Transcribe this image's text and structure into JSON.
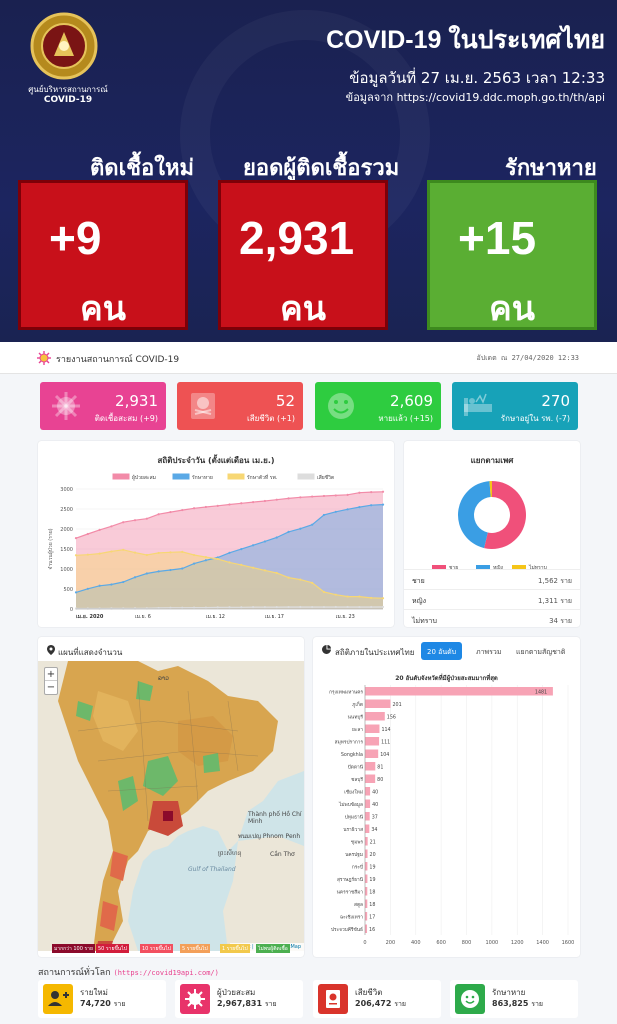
{
  "header": {
    "org_line1": "ศูนย์บริหารสถานการณ์",
    "org_line2": "COVID-19",
    "title": "COVID-19 ในประเทศไทย",
    "date": "ข้อมูลวันที่ 27 เม.ย. 2563 เวลา 12:33",
    "source": "ข้อมูลจาก https://covid19.ddc.moph.go.th/th/api"
  },
  "hero": [
    {
      "label": "ติดเชื้อใหม่",
      "value": "+9",
      "unit": "คน"
    },
    {
      "label": "ยอดผู้ติดเชื้อรวม",
      "value": "2,931",
      "unit": "คน"
    },
    {
      "label": "รักษาหาย",
      "value": "+15",
      "unit": "คน"
    }
  ],
  "report": {
    "title": "รายงานสถานการณ์ COVID-19",
    "updated": "อัปเดต ณ 27/04/2020 12:33"
  },
  "stats": [
    {
      "value": "2,931",
      "sub": "ติดเชื้อสะสม (+9)",
      "color": "#e84393",
      "icon": "virus-icon"
    },
    {
      "value": "52",
      "sub": "เสียชีวิต (+1)",
      "color": "#ee5253",
      "icon": "skull-icon"
    },
    {
      "value": "2,609",
      "sub": "หายแล้ว (+15)",
      "color": "#2ecc40",
      "icon": "smile-icon"
    },
    {
      "value": "270",
      "sub": "รักษาอยู่ใน รพ. (-7)",
      "color": "#17a2b8",
      "icon": "hospital-bed-icon"
    }
  ],
  "daily": {
    "title": "สถิติประจำวัน (ตั้งแต่เดือน เม.ย.)",
    "legend": [
      "ผู้ป่วยสะสม",
      "รักษาหาย",
      "รักษาตัวที่ รพ.",
      "เสียชีวิต"
    ],
    "ylabel": "จำนวนผู้ป่วย (ราย)"
  },
  "chart_data": {
    "type": "area",
    "title": "สถิติประจำวัน (ตั้งแต่เดือน เม.ย.)",
    "ylabel": "จำนวนผู้ป่วย (ราย)",
    "ylim": [
      0,
      3000
    ],
    "yticks": [
      "0",
      "500",
      "1000",
      "1500",
      "2000",
      "2500",
      "3000"
    ],
    "xticks": [
      "เม.ย. 2020",
      "เม.ย. 6",
      "เม.ย. 12",
      "เม.ย. 17",
      "เม.ย. 23"
    ],
    "x": [
      1,
      2,
      3,
      4,
      5,
      6,
      7,
      8,
      9,
      10,
      11,
      12,
      13,
      14,
      15,
      16,
      17,
      18,
      19,
      20,
      21,
      22,
      23,
      24,
      25,
      26,
      27
    ],
    "series": [
      {
        "name": "ผู้ป่วยสะสม",
        "color": "#f28ba8",
        "values": [
          1771,
          1875,
          1978,
          2067,
          2169,
          2220,
          2258,
          2369,
          2423,
          2473,
          2518,
          2551,
          2579,
          2613,
          2643,
          2672,
          2700,
          2733,
          2765,
          2792,
          2811,
          2826,
          2839,
          2854,
          2907,
          2922,
          2931
        ]
      },
      {
        "name": "รักษาหาย",
        "color": "#5aa9e6",
        "values": [
          416,
          505,
          581,
          612,
          674,
          793,
          888,
          940,
          974,
          1013,
          1135,
          1218,
          1288,
          1405,
          1497,
          1593,
          1689,
          1787,
          1928,
          2007,
          2108,
          2352,
          2430,
          2492,
          2547,
          2594,
          2609
        ]
      },
      {
        "name": "รักษาตัวที่ รพ.",
        "color": "#f7d774",
        "values": [
          1343,
          1358,
          1384,
          1439,
          1480,
          1409,
          1350,
          1402,
          1417,
          1428,
          1349,
          1297,
          1251,
          1165,
          1103,
          1032,
          966,
          900,
          784,
          735,
          654,
          425,
          358,
          311,
          311,
          277,
          270
        ]
      },
      {
        "name": "เสียชีวิต",
        "color": "#dddddd",
        "values": [
          12,
          12,
          13,
          16,
          15,
          18,
          20,
          27,
          32,
          32,
          34,
          36,
          40,
          43,
          43,
          47,
          47,
          47,
          49,
          50,
          49,
          49,
          51,
          51,
          49,
          51,
          52
        ]
      }
    ]
  },
  "gender": {
    "title": "แยกตามเพศ",
    "legend": [
      "ชาย",
      "หญิง",
      "ไม่ทราบ"
    ],
    "rows": [
      {
        "k": "ชาย",
        "v": "1,562 ราย"
      },
      {
        "k": "หญิง",
        "v": "1,311 ราย"
      },
      {
        "k": "ไม่ทราบ",
        "v": "34 ราย"
      }
    ]
  },
  "gender_chart": {
    "type": "pie",
    "values": [
      1562,
      1311,
      34
    ],
    "labels": [
      "ชาย",
      "หญิง",
      "ไม่ทราบ"
    ],
    "colors": [
      "#f0507a",
      "#3a9ee4",
      "#f5c518"
    ]
  },
  "map": {
    "title": "แผนที่แสดงจำนวน",
    "zoom_in": "+",
    "zoom_out": "−",
    "labels": [
      "Gulf of Thailand",
      "พนมเปญ Phnom Penh",
      "Thành phố Hồ Chí Minh",
      "ព្រះសីហនុ",
      "Cần Thơ",
      "ລາວ"
    ],
    "attribution": "Leaflet | © OpenStreetMap",
    "legend": [
      {
        "t": "มากกว่า 100 ราย",
        "c": "#8b0a2b"
      },
      {
        "t": "50 รายขึ้นไป",
        "c": "#d21d3c"
      },
      {
        "t": "10 รายขึ้นไป",
        "c": "#f25060"
      },
      {
        "t": "5 รายขึ้นไป",
        "c": "#f3a05a"
      },
      {
        "t": "1 รายขึ้นไป",
        "c": "#f2c94c"
      },
      {
        "t": "ไม่พบผู้ติดเชื้อ",
        "c": "#4caf50"
      }
    ]
  },
  "province": {
    "title": "สถิติภายในประเทศไทย",
    "tabs": [
      "20 อันดับ",
      "ภาพรวม",
      "แยกตามสัญชาติ"
    ],
    "chart_title": "20 อันดับจังหวัดที่มีผู้ป่วยสะสมมากที่สุด"
  },
  "province_chart": {
    "type": "bar",
    "categories": [
      "กรุงเทพมหานคร",
      "ภูเก็ต",
      "นนทบุรี",
      "ยะลา",
      "สมุทรปราการ",
      "Songkhla",
      "ปัตตานี",
      "ชลบุรี",
      "เชียงใหม่",
      "ไม่พบข้อมูล",
      "ปทุมธานี",
      "นราธิวาส",
      "ชุมพร",
      "นครปฐม",
      "กระบี่",
      "สุราษฎร์ธานี",
      "นครราชสีมา",
      "สตูล",
      "ฉะเชิงเทรา",
      "ประจวบคีรีขันธ์"
    ],
    "values": [
      1481,
      201,
      156,
      114,
      111,
      104,
      81,
      80,
      40,
      40,
      37,
      34,
      21,
      20,
      19,
      19,
      18,
      18,
      17,
      16
    ],
    "xticks": [
      "0",
      "200",
      "400",
      "600",
      "800",
      "1000",
      "1200",
      "1400",
      "1600"
    ],
    "xlim": [
      0,
      1600
    ]
  },
  "world": {
    "title": "สถานการณ์ทั่วโลก",
    "link": "(https://covid19api.com/)",
    "items": [
      {
        "label": "รายใหม่",
        "value": "74,720",
        "unit": "ราย",
        "color": "#f5b800",
        "icon": "user-plus-icon"
      },
      {
        "label": "ผู้ป่วยสะสม",
        "value": "2,967,831",
        "unit": "ราย",
        "color": "#e8336a",
        "icon": "virus-icon"
      },
      {
        "label": "เสียชีวิต",
        "value": "206,472",
        "unit": "ราย",
        "color": "#d9342b",
        "icon": "skull-icon"
      },
      {
        "label": "รักษาหาย",
        "value": "863,825",
        "unit": "ราย",
        "color": "#2eaa4a",
        "icon": "smile-icon"
      }
    ]
  }
}
